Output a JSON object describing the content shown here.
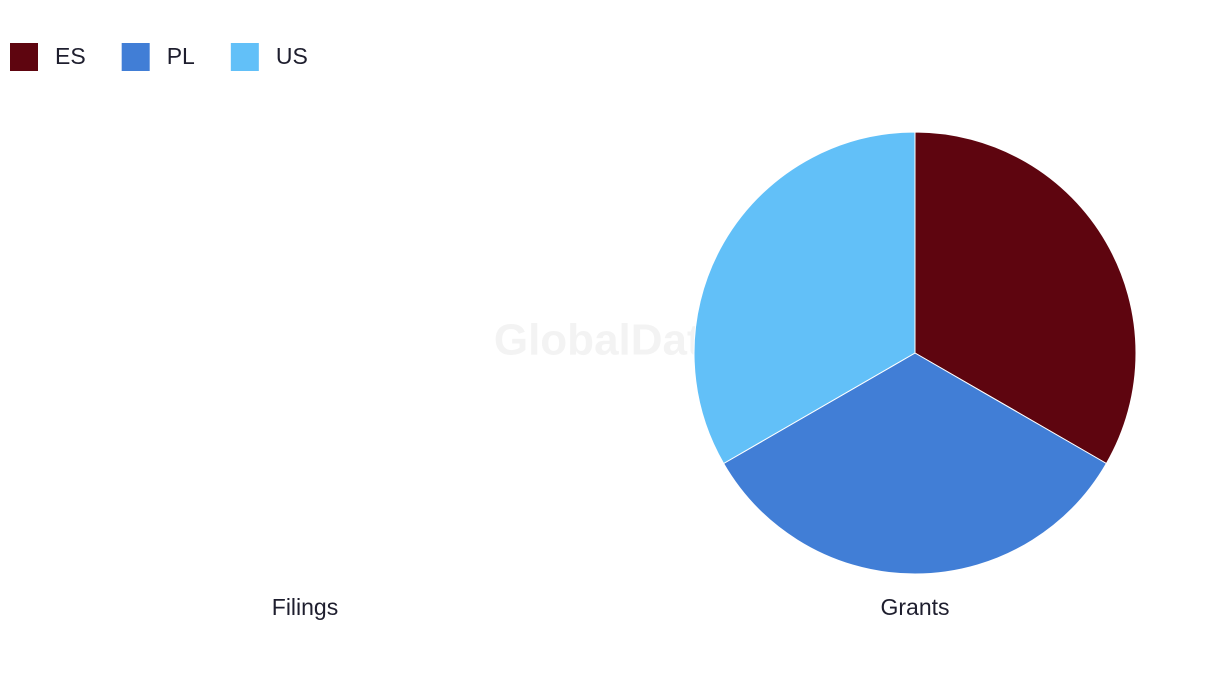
{
  "watermark": "GlobalData",
  "legend_position": "top-left",
  "chart_data": [
    {
      "type": "pie",
      "title": "Filings",
      "categories": [
        "ES",
        "PL",
        "US"
      ],
      "values": [
        0,
        0,
        0
      ],
      "colors": [
        "#5e050f",
        "#417ed6",
        "#62c0f8"
      ]
    },
    {
      "type": "pie",
      "title": "Grants",
      "categories": [
        "ES",
        "PL",
        "US"
      ],
      "values": [
        1,
        1,
        1
      ],
      "colors": [
        "#5e050f",
        "#417ed6",
        "#62c0f8"
      ]
    }
  ]
}
